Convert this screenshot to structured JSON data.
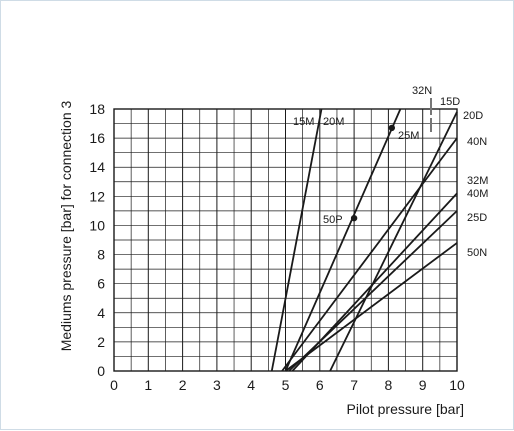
{
  "chart_data": {
    "type": "line",
    "xlabel": "Pilot pressure [bar]",
    "ylabel": "Mediums pressure [bar] for connection 3",
    "xlim": [
      0,
      10
    ],
    "ylim": [
      0,
      18
    ],
    "x_ticks": [
      "0",
      "1",
      "2",
      "3",
      "4",
      "5",
      "6",
      "7",
      "8",
      "9",
      "10"
    ],
    "y_ticks": [
      "0",
      "2",
      "4",
      "6",
      "8",
      "10",
      "12",
      "14",
      "16",
      "18"
    ],
    "x_grid_step": 0.5,
    "y_grid_step": 1,
    "grid": true,
    "series": [
      {
        "name": "15M",
        "x": [
          4.6,
          6.05
        ],
        "y": [
          0,
          18
        ]
      },
      {
        "name": "20M",
        "x": [
          5.0,
          8.35
        ],
        "y": [
          0,
          18
        ]
      },
      {
        "name": "15D",
        "x": [
          6.3,
          10.0
        ],
        "y": [
          0,
          17.8
        ]
      },
      {
        "name": "40N",
        "x": [
          4.9,
          10.0
        ],
        "y": [
          0,
          16.0
        ]
      },
      {
        "name": "32M",
        "x": [
          5.2,
          10.0
        ],
        "y": [
          0,
          12.2
        ]
      },
      {
        "name": "25D",
        "x": [
          5.1,
          10.0
        ],
        "y": [
          0,
          11.0
        ]
      },
      {
        "name": "50N",
        "x": [
          5.0,
          10.0
        ],
        "y": [
          0,
          8.8
        ]
      }
    ],
    "points": [
      {
        "label": "50P",
        "x": 7.0,
        "y": 10.5
      },
      {
        "label": "25M",
        "x": 8.1,
        "y": 16.7
      }
    ],
    "annotations": [
      "15M",
      "20M",
      "25M",
      "32N",
      "15D",
      "20D",
      "40N",
      "32M",
      "40M",
      "25D",
      "50N",
      "50P"
    ]
  }
}
